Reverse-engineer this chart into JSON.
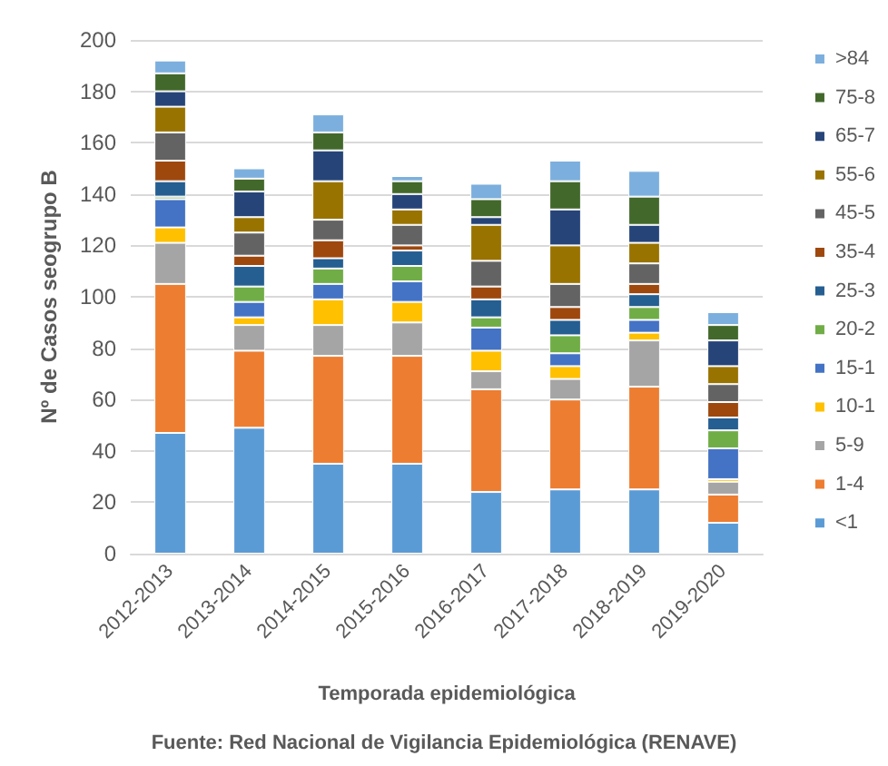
{
  "chart_data": {
    "type": "bar",
    "stacked": true,
    "xlabel": "Temporada epidemiológica",
    "ylabel": "Nº de Casos seogrupo B",
    "annotations": [
      "Fuente: Red Nacional de Vigilancia Epidemiológica (RENAVE)"
    ],
    "categories": [
      "2012-2013",
      "2013-2014",
      "2014-2015",
      "2015-2016",
      "2016-2017",
      "2017-2018",
      "2018-2019",
      "2019-2020"
    ],
    "ylim": [
      0,
      200
    ],
    "yticks": [
      0,
      20,
      40,
      60,
      80,
      100,
      120,
      140,
      160,
      180,
      200
    ],
    "grid": "y",
    "legend": "right",
    "series": [
      {
        "name": "<1",
        "color": "#5b9bd5",
        "values": [
          47,
          49,
          35,
          35,
          24,
          25,
          25,
          12
        ]
      },
      {
        "name": "1-4",
        "color": "#ed7d31",
        "values": [
          58,
          30,
          42,
          42,
          40,
          35,
          40,
          11
        ]
      },
      {
        "name": "5-9",
        "color": "#a5a5a5",
        "values": [
          16,
          10,
          12,
          13,
          7,
          8,
          18,
          5
        ]
      },
      {
        "name": "10-1",
        "color": "#ffc000",
        "values": [
          6,
          3,
          10,
          8,
          8,
          5,
          3,
          1
        ]
      },
      {
        "name": "15-1",
        "color": "#4472c4",
        "values": [
          11,
          6,
          6,
          8,
          9,
          5,
          5,
          12
        ]
      },
      {
        "name": "20-2",
        "color": "#70ad47",
        "values": [
          1,
          6,
          6,
          6,
          4,
          7,
          5,
          7
        ]
      },
      {
        "name": "25-3",
        "color": "#255e91",
        "values": [
          6,
          8,
          4,
          6,
          7,
          6,
          5,
          5
        ]
      },
      {
        "name": "35-4",
        "color": "#9e480e",
        "values": [
          8,
          4,
          7,
          2,
          5,
          5,
          4,
          6
        ]
      },
      {
        "name": "45-5",
        "color": "#636363",
        "values": [
          11,
          9,
          8,
          8,
          10,
          9,
          8,
          7
        ]
      },
      {
        "name": "55-6",
        "color": "#997300",
        "values": [
          10,
          6,
          15,
          6,
          14,
          15,
          8,
          7
        ]
      },
      {
        "name": "65-7",
        "color": "#264478",
        "values": [
          6,
          10,
          12,
          6,
          3,
          14,
          7,
          10
        ]
      },
      {
        "name": "75-8",
        "color": "#43682b",
        "values": [
          7,
          5,
          7,
          5,
          7,
          11,
          11,
          6
        ]
      },
      {
        "name": ">84",
        "color": "#7cafdd",
        "values": [
          5,
          4,
          7,
          2,
          6,
          8,
          10,
          5
        ]
      }
    ]
  }
}
